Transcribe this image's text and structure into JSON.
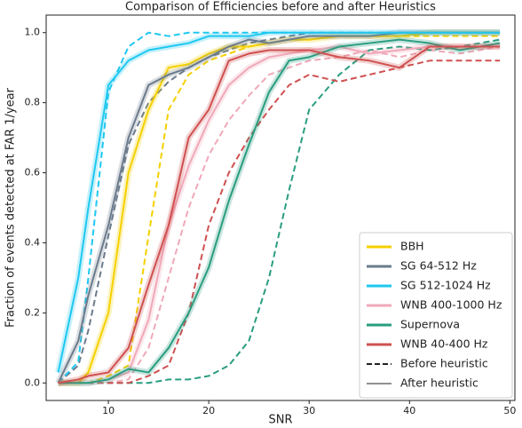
{
  "chart_data": {
    "type": "line",
    "title": "Comparison of Efficiencies before and after Heuristics",
    "x_label": "SNR",
    "y_label": "Fraction of events detected at FAR 1/year",
    "x": [
      5,
      7,
      8,
      10,
      12,
      14,
      16,
      18,
      20,
      22,
      24,
      26,
      28,
      30,
      33,
      36,
      39,
      42,
      45,
      49
    ],
    "xlim": [
      3.8,
      50.5
    ],
    "xticks": [
      10,
      20,
      30,
      40,
      50
    ],
    "ylim": [
      -0.05,
      1.05
    ],
    "yticks": [
      {
        "value": 0,
        "label": "0.0"
      },
      0.2,
      0.4,
      0.6,
      0.8,
      {
        "value": 1,
        "label": "1.0"
      }
    ],
    "line_styles": {
      "before": "Before heuristic",
      "after": "After heuristic"
    },
    "legend": "lower right",
    "series": [
      {
        "name": "BBH",
        "color": "#f5d000",
        "before": [
          0,
          0,
          0,
          0.02,
          0.05,
          0.42,
          0.78,
          0.88,
          0.92,
          0.94,
          0.96,
          0.97,
          0.98,
          0.98,
          0.99,
          0.99,
          0.99,
          0.99,
          0.99,
          0.99
        ],
        "after": [
          0,
          0,
          0.03,
          0.2,
          0.6,
          0.78,
          0.9,
          0.91,
          0.94,
          0.96,
          0.96,
          0.97,
          0.98,
          0.98,
          0.99,
          0.99,
          0.99,
          1,
          1,
          1
        ]
      },
      {
        "name": "SG 64-512 Hz",
        "color": "#6b7b8c",
        "before": [
          0,
          0.05,
          0.15,
          0.42,
          0.68,
          0.8,
          0.86,
          0.9,
          0.93,
          0.95,
          0.97,
          0.98,
          0.99,
          1,
          1,
          1,
          1,
          1,
          1,
          1
        ],
        "after": [
          0,
          0.12,
          0.25,
          0.45,
          0.7,
          0.85,
          0.88,
          0.9,
          0.93,
          0.96,
          0.98,
          0.97,
          0.98,
          0.99,
          0.99,
          0.99,
          1,
          1,
          1,
          1
        ]
      },
      {
        "name": "SG 512-1024 Hz",
        "color": "#1ec8f0",
        "before": [
          0,
          0.06,
          0.3,
          0.83,
          0.96,
          1,
          0.99,
          1,
          1,
          1,
          1,
          1,
          1,
          1,
          1,
          1,
          1,
          1,
          1,
          1
        ],
        "after": [
          0.03,
          0.3,
          0.5,
          0.85,
          0.92,
          0.95,
          0.96,
          0.97,
          0.99,
          0.99,
          0.99,
          1,
          1,
          1,
          1,
          1,
          1,
          1,
          1,
          1
        ]
      },
      {
        "name": "WNB 400-1000 Hz",
        "color": "#f0a8b8",
        "before": [
          0,
          0,
          0,
          0,
          0.01,
          0.1,
          0.3,
          0.5,
          0.65,
          0.75,
          0.82,
          0.88,
          0.9,
          0.92,
          0.93,
          0.95,
          0.93,
          0.95,
          0.94,
          0.96
        ],
        "after": [
          0,
          0,
          0,
          0.01,
          0.03,
          0.18,
          0.45,
          0.62,
          0.75,
          0.85,
          0.9,
          0.93,
          0.94,
          0.95,
          0.96,
          0.94,
          0.95,
          0.96,
          0.96,
          0.96
        ]
      },
      {
        "name": "Supernova",
        "color": "#2a9d80",
        "before": [
          0,
          0,
          0,
          0,
          0,
          0,
          0.01,
          0.01,
          0.02,
          0.05,
          0.12,
          0.3,
          0.55,
          0.78,
          0.88,
          0.95,
          0.96,
          0.95,
          0.96,
          0.98
        ],
        "after": [
          0,
          0,
          0,
          0.01,
          0.04,
          0.03,
          0.1,
          0.2,
          0.33,
          0.52,
          0.68,
          0.83,
          0.92,
          0.93,
          0.96,
          0.97,
          0.98,
          0.97,
          0.95,
          0.97
        ]
      },
      {
        "name": "WNB 40-400 Hz",
        "color": "#d05050",
        "before": [
          0,
          0,
          0,
          0,
          0,
          0.02,
          0.05,
          0.2,
          0.45,
          0.6,
          0.7,
          0.78,
          0.85,
          0.88,
          0.86,
          0.88,
          0.9,
          0.92,
          0.92,
          0.92
        ],
        "after": [
          0,
          0.01,
          0.02,
          0.03,
          0.1,
          0.28,
          0.45,
          0.7,
          0.78,
          0.92,
          0.94,
          0.95,
          0.95,
          0.95,
          0.93,
          0.92,
          0.9,
          0.96,
          0.96,
          0.96
        ]
      }
    ]
  }
}
